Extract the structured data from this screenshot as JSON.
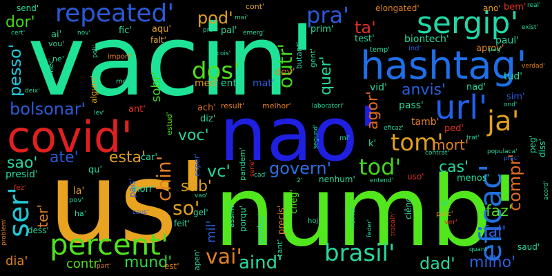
{
  "words": [
    {
      "text": "vacin'",
      "color": "#1ee396",
      "vertical": false
    },
    {
      "text": "us'",
      "color": "#e8a320",
      "vertical": false
    },
    {
      "text": "numb'",
      "color": "#52e61c",
      "vertical": false
    },
    {
      "text": "nao'",
      "color": "#1f1fe0",
      "vertical": false
    },
    {
      "text": "covid'",
      "color": "#e02020",
      "vertical": false
    },
    {
      "text": "hashtag'",
      "color": "#1f6fe8",
      "vertical": false
    },
    {
      "text": "repeated'",
      "color": "#2a5ad8",
      "vertical": false
    },
    {
      "text": "percent'",
      "color": "#50e020",
      "vertical": false
    },
    {
      "text": "sergip'",
      "color": "#22d8a8",
      "vertical": false
    },
    {
      "text": "url'",
      "color": "#2060e8",
      "vertical": false
    },
    {
      "text": "ja'",
      "color": "#e0a020",
      "vertical": false
    },
    {
      "text": "eficac'",
      "color": "#2070e0",
      "vertical": true
    },
    {
      "text": "brasil'",
      "color": "#28d8a0",
      "vertical": false
    },
    {
      "text": "tom'",
      "color": "#e0a020",
      "vertical": false
    },
    {
      "text": "tod'",
      "color": "#40d818",
      "vertical": false
    },
    {
      "text": "dos'",
      "color": "#50e020",
      "vertical": false
    },
    {
      "text": "pra'",
      "color": "#2a5ad8",
      "vertical": false
    },
    {
      "text": "vai'",
      "color": "#e08020",
      "vertical": false
    },
    {
      "text": "ser'",
      "color": "#22c8d8",
      "vertical": true
    },
    {
      "text": "vc'",
      "color": "#20d8a0",
      "vertical": false
    },
    {
      "text": "so'",
      "color": "#e0a020",
      "vertical": false
    },
    {
      "text": "govern'",
      "color": "#2a70e0",
      "vertical": false
    },
    {
      "text": "compr'",
      "color": "#e06a20",
      "vertical": true
    },
    {
      "text": "milho'",
      "color": "#2a60e0",
      "vertical": false
    },
    {
      "text": "bolsonar'",
      "color": "#2a5ad8",
      "vertical": false
    },
    {
      "text": "pod'",
      "color": "#e0a020",
      "vertical": false
    },
    {
      "text": "outr'",
      "color": "#40d818",
      "vertical": true
    },
    {
      "text": "chin'",
      "color": "#e08020",
      "vertical": true
    },
    {
      "text": "aind'",
      "color": "#28d8a0",
      "vertical": false
    },
    {
      "text": "mund'",
      "color": "#30d840",
      "vertical": false
    },
    {
      "text": "anvis'",
      "color": "#2a60e0",
      "vertical": false
    },
    {
      "text": "ta'",
      "color": "#e03020",
      "vertical": false
    },
    {
      "text": "dad'",
      "color": "#28d8a0",
      "vertical": false
    },
    {
      "text": "fal'",
      "color": "#2a60e0",
      "vertical": false
    },
    {
      "text": "faz'",
      "color": "#50e020",
      "vertical": false
    },
    {
      "text": "cas'",
      "color": "#28d8a0",
      "vertical": false
    },
    {
      "text": "mort'",
      "color": "#e08020",
      "vertical": false
    },
    {
      "text": "pesso'",
      "color": "#22c8d8",
      "vertical": true
    },
    {
      "text": "dor'",
      "color": "#40d818",
      "vertical": false
    },
    {
      "text": "voc'",
      "color": "#28d8a0",
      "vertical": false
    },
    {
      "text": "esta'",
      "color": "#e0a020",
      "vertical": false
    },
    {
      "text": "ate'",
      "color": "#2a5ad8",
      "vertical": false
    },
    {
      "text": "sao'",
      "color": "#28d8a0",
      "vertical": false
    },
    {
      "text": "quer'",
      "color": "#28d8a0",
      "vertical": true
    },
    {
      "text": "agor'",
      "color": "#e06a20",
      "vertical": true
    },
    {
      "text": "sab'",
      "color": "#e0a020",
      "vertical": false
    },
    {
      "text": "ter'",
      "color": "#e08020",
      "vertical": true
    },
    {
      "text": "mil'",
      "color": "#2a60e0",
      "vertical": true
    },
    {
      "text": "contr'",
      "color": "#50e020",
      "vertical": false
    },
    {
      "text": "dia'",
      "color": "#e08020",
      "vertical": false
    },
    {
      "text": "sobr'",
      "color": "#40d818",
      "vertical": true
    },
    {
      "text": "biontech'",
      "color": "#28d8a0",
      "vertical": false
    },
    {
      "text": "test'",
      "color": "#28d8a0",
      "vertical": false
    },
    {
      "text": "paul'",
      "color": "#28d8a0",
      "vertical": false
    },
    {
      "text": "aprov'",
      "color": "#e08020",
      "vertical": false
    },
    {
      "text": "tud'",
      "color": "#28d8a0",
      "vertical": false
    },
    {
      "text": "nad'",
      "color": "#28d8a0",
      "vertical": false
    },
    {
      "text": "dev'",
      "color": "#e08020",
      "vertical": false
    },
    {
      "text": "mat'",
      "color": "#2a60e0",
      "vertical": false
    },
    {
      "text": "enta'",
      "color": "#28d8a0",
      "vertical": false
    },
    {
      "text": "med'",
      "color": "#e0a020",
      "vertical": false
    },
    {
      "text": "vid'",
      "color": "#28d8a0",
      "vertical": false
    },
    {
      "text": "pass'",
      "color": "#28d8a0",
      "vertical": false
    },
    {
      "text": "tamb'",
      "color": "#e08020",
      "vertical": false
    },
    {
      "text": "ped'",
      "color": "#e03020",
      "vertical": false
    },
    {
      "text": "prim'",
      "color": "#28d8a0",
      "vertical": false
    },
    {
      "text": "fic'",
      "color": "#28d8a0",
      "vertical": false
    },
    {
      "text": "aqu'",
      "color": "#e0a020",
      "vertical": false
    },
    {
      "text": "falt'",
      "color": "#e0a020",
      "vertical": false
    },
    {
      "text": "pal'",
      "color": "#28d8a0",
      "vertical": false
    },
    {
      "text": "algum'",
      "color": "#e0a020",
      "vertical": true
    },
    {
      "text": "ant'",
      "color": "#e03020",
      "vertical": false
    },
    {
      "text": "ach'",
      "color": "#e06a20",
      "vertical": false
    },
    {
      "text": "diz'",
      "color": "#28d8a0",
      "vertical": false
    },
    {
      "text": "result'",
      "color": "#e08020",
      "vertical": false
    },
    {
      "text": "melhor'",
      "color": "#e08020",
      "vertical": false
    },
    {
      "text": "estud'",
      "color": "#50e020",
      "vertical": true
    },
    {
      "text": "car'",
      "color": "#28d8a0",
      "vertical": false
    },
    {
      "text": "qu'",
      "color": "#28d8a0",
      "vertical": false
    },
    {
      "text": "la'",
      "color": "#e0a020",
      "vertical": false
    },
    {
      "text": "presid'",
      "color": "#28d8a0",
      "vertical": false
    },
    {
      "text": "morr'",
      "color": "#28d8a0",
      "vertical": false
    },
    {
      "text": "feit'",
      "color": "#28d8a0",
      "vertical": false
    },
    {
      "text": "est'",
      "color": "#e08020",
      "vertical": false
    },
    {
      "text": "porqu'",
      "color": "#28d8a0",
      "vertical": true
    },
    {
      "text": "assim'",
      "color": "#28d8a0",
      "vertical": true
    },
    {
      "text": "produz'",
      "color": "#28d8a0",
      "vertical": true
    },
    {
      "text": "precis'",
      "color": "#e08020",
      "vertical": true
    },
    {
      "text": "cheg'",
      "color": "#50e020",
      "vertical": true
    },
    {
      "text": "nenhum'",
      "color": "#28d8a0",
      "vertical": false
    },
    {
      "text": "menos'",
      "color": "#28d8a0",
      "vertical": false
    },
    {
      "text": "ano'",
      "color": "#e0a020",
      "vertical": false
    },
    {
      "text": "bem'",
      "color": "#e03020",
      "vertical": false
    },
    {
      "text": "elongated'",
      "color": "#e08020",
      "vertical": false
    },
    {
      "text": "send'",
      "color": "#28d8a0",
      "vertical": false
    },
    {
      "text": "cont'",
      "color": "#e0a020",
      "vertical": false
    },
    {
      "text": "vou'",
      "color": "#28d8a0",
      "vertical": false
    },
    {
      "text": "ai'",
      "color": "#28d8a0",
      "vertical": false
    },
    {
      "text": "ne'",
      "color": "#28d8a0",
      "vertical": false
    },
    {
      "text": "comec'",
      "color": "#28d8a0",
      "vertical": true
    },
    {
      "text": "men'",
      "color": "#28d8a0",
      "vertical": false
    },
    {
      "text": "import'",
      "color": "#e08020",
      "vertical": false
    },
    {
      "text": "butant'",
      "color": "#28d8a0",
      "vertical": true
    },
    {
      "text": "gent'",
      "color": "#28d8a0",
      "vertical": true
    },
    {
      "text": "temp'",
      "color": "#28d8a0",
      "vertical": false
    },
    {
      "text": "ind'",
      "color": "#2a60e0",
      "vertical": false
    },
    {
      "text": "laboratori'",
      "color": "#28d8a0",
      "vertical": false
    },
    {
      "text": "pandem'",
      "color": "#28d8a0",
      "vertical": true
    },
    {
      "text": "esper'",
      "color": "#2a60e0",
      "vertical": true
    },
    {
      "text": "pais'",
      "color": "#2a60e0",
      "vertical": true
    },
    {
      "text": "gel'",
      "color": "#28d8a0",
      "vertical": false
    },
    {
      "text": "sim'",
      "color": "#2a60e0",
      "vertical": false
    },
    {
      "text": "diss'",
      "color": "#28d8a0",
      "vertical": true
    },
    {
      "text": "peg'",
      "color": "#28d8a0",
      "vertical": true
    },
    {
      "text": "ciênc'",
      "color": "#28d8a0",
      "vertical": true
    },
    {
      "text": "uso'",
      "color": "#e03020",
      "vertical": false
    },
    {
      "text": "entend'",
      "color": "#28d8a0",
      "vertical": false
    },
    {
      "text": "trabalh'",
      "color": "#e03020",
      "vertical": true
    },
    {
      "text": "institut'",
      "color": "#28d8a0",
      "vertical": true
    },
    {
      "text": "feder'",
      "color": "#28d8a0",
      "vertical": true
    },
    {
      "text": "hoj'",
      "color": "#28d8a0",
      "vertical": false
    },
    {
      "text": "tant'",
      "color": "#28d8a0",
      "vertical": true
    },
    {
      "text": "dess'",
      "color": "#28d8a0",
      "vertical": false
    },
    {
      "text": "apen'",
      "color": "#28d8a0",
      "vertical": true
    },
    {
      "text": "part'",
      "color": "#e08020",
      "vertical": false
    },
    {
      "text": "saud'",
      "color": "#28d8a0",
      "vertical": false
    },
    {
      "text": "quant'",
      "color": "#28d8a0",
      "vertical": false
    },
    {
      "text": "ver'",
      "color": "#e03020",
      "vertical": false
    },
    {
      "text": "parc'",
      "color": "#e0a020",
      "vertical": false
    },
    {
      "text": "pi'",
      "color": "#28d8a0",
      "vertical": false
    },
    {
      "text": "pov'",
      "color": "#28d8a0",
      "vertical": false
    },
    {
      "text": "ha'",
      "color": "#28d8a0",
      "vertical": false
    },
    {
      "text": "fez'",
      "color": "#e03020",
      "vertical": false
    },
    {
      "text": "problem'",
      "color": "#e08020",
      "vertical": true
    },
    {
      "text": "caus'",
      "color": "#2a60e0",
      "vertical": false
    },
    {
      "text": "vao'",
      "color": "#28d8a0",
      "vertical": false
    },
    {
      "text": "k'",
      "color": "#28d8a0",
      "vertical": false
    },
    {
      "text": "mi'",
      "color": "#28d8a0",
      "vertical": false
    },
    {
      "text": "eficaz'",
      "color": "#28d8a0",
      "vertical": false
    },
    {
      "text": "contrat'",
      "color": "#28d8a0",
      "vertical": false
    },
    {
      "text": "populaca'",
      "color": "#28d8a0",
      "vertical": false
    },
    {
      "text": "trat'",
      "color": "#28d8a0",
      "vertical": false
    },
    {
      "text": "prec'",
      "color": "#2a60e0",
      "vertical": false
    },
    {
      "text": "acord'",
      "color": "#28d8a0",
      "vertical": true
    },
    {
      "text": "segund'",
      "color": "#28d8a0",
      "vertical": true
    },
    {
      "text": "verdad'",
      "color": "#e08020",
      "vertical": false
    },
    {
      "text": "pag'",
      "color": "#28d8a0",
      "vertical": false
    },
    {
      "text": "exist'",
      "color": "#28d8a0",
      "vertical": false
    },
    {
      "text": "real'",
      "color": "#28d8a0",
      "vertical": false
    },
    {
      "text": "lev'",
      "color": "#28d8a0",
      "vertical": false
    },
    {
      "text": "deix'",
      "color": "#28d8a0",
      "vertical": false
    },
    {
      "text": "cert'",
      "color": "#28d8a0",
      "vertical": false
    },
    {
      "text": "nov'",
      "color": "#28d8a0",
      "vertical": false
    },
    {
      "text": "pro'",
      "color": "#28d8a0",
      "vertical": false
    },
    {
      "text": "emerg'",
      "color": "#28d8a0",
      "vertical": false
    },
    {
      "text": "cois'",
      "color": "#28d8a0",
      "vertical": false
    },
    {
      "text": "mai'",
      "color": "#28d8a0",
      "vertical": false
    },
    {
      "text": "poli'",
      "color": "#28d8a0",
      "vertical": true
    },
    {
      "text": "ond'",
      "color": "#28d8a0",
      "vertical": false
    },
    {
      "text": "serie'",
      "color": "#e03020",
      "vertical": true
    },
    {
      "text": "cad'",
      "color": "#28d8a0",
      "vertical": false
    },
    {
      "text": "2'",
      "color": "#28d8a0",
      "vertical": false
    }
  ]
}
